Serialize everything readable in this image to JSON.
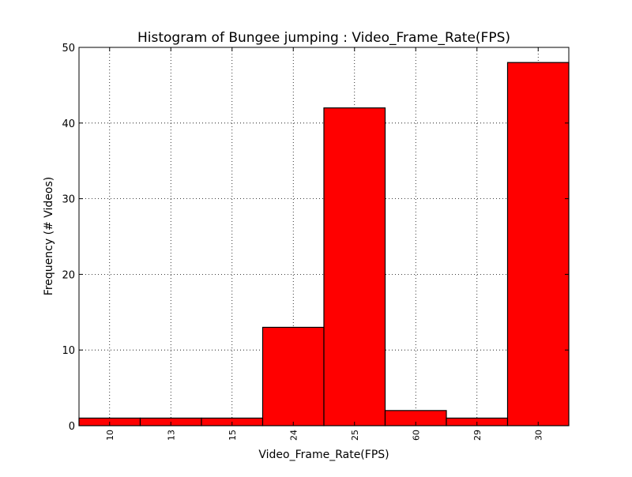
{
  "chart_data": {
    "type": "bar",
    "title": "Histogram of Bungee jumping : Video_Frame_Rate(FPS)",
    "xlabel": "Video_Frame_Rate(FPS)",
    "ylabel": "Frequency (# Videos)",
    "categories": [
      "10",
      "13",
      "15",
      "24",
      "25",
      "60",
      "29",
      "30"
    ],
    "values": [
      1,
      1,
      1,
      13,
      42,
      2,
      1,
      48
    ],
    "ylim": [
      0,
      50
    ],
    "yticks": [
      "0",
      "10",
      "20",
      "30",
      "40",
      "50"
    ],
    "xtick_rotation": "vertical",
    "grid": true,
    "bar_color": "#ff0000",
    "edge_color": "#000000"
  }
}
